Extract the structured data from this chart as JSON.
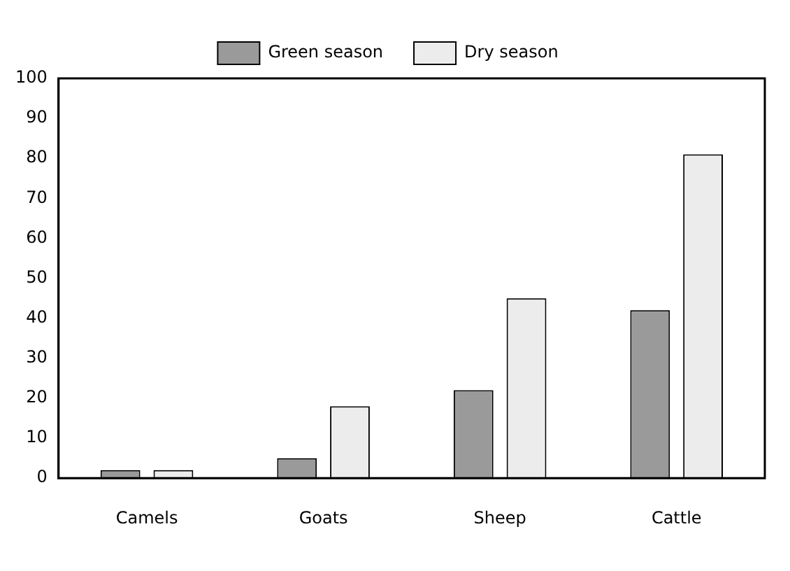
{
  "chart_data": {
    "type": "bar",
    "categories": [
      "Camels",
      "Goats",
      "Sheep",
      "Cattle"
    ],
    "series": [
      {
        "name": "Green season",
        "color": "#9a9a9a",
        "values": [
          2,
          5,
          22,
          42
        ]
      },
      {
        "name": "Dry season",
        "color": "#ececec",
        "values": [
          2,
          18,
          45,
          81
        ]
      }
    ],
    "ylim": [
      0,
      100
    ],
    "yticks": [
      0,
      10,
      20,
      30,
      40,
      50,
      60,
      70,
      80,
      90,
      100
    ],
    "grid": false,
    "legend": "top"
  }
}
